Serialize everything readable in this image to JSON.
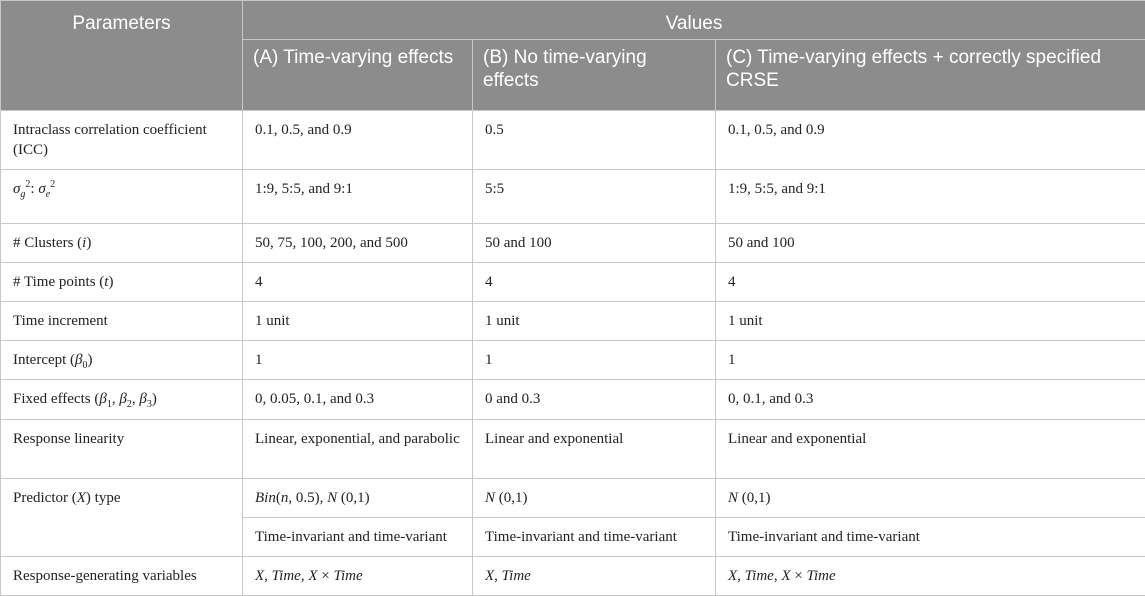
{
  "header": {
    "parameters": "Parameters",
    "values": "Values",
    "col_a": "(A) Time-varying effects",
    "col_b": "(B) No time-varying effects",
    "col_c": "(C) Time-varying effects + correctly specified CRSE"
  },
  "rows": [
    {
      "param": "Intraclass correlation coefficient (ICC)",
      "a": "0.1, 0.5, and 0.9",
      "b": "0.5",
      "c": "0.1, 0.5, and 0.9"
    },
    {
      "param_sigma_g": "σ",
      "param_sub_g": "g",
      "param_sup_g": "2",
      "param_colon": ": ",
      "param_sigma_e": "σ",
      "param_sub_e": "e",
      "param_sup_e": "2",
      "a": "1:9, 5:5, and 9:1",
      "b": "5:5",
      "c": "1:9, 5:5, and 9:1"
    },
    {
      "param_prefix": "# Clusters (",
      "param_var": "i",
      "param_suffix": ")",
      "a": "50, 75, 100, 200, and 500",
      "b": "50 and 100",
      "c": "50 and 100"
    },
    {
      "param_prefix": "# Time points (",
      "param_var": "t",
      "param_suffix": ")",
      "a": "4",
      "b": "4",
      "c": "4"
    },
    {
      "param": "Time increment",
      "a": "1 unit",
      "b": "1 unit",
      "c": "1 unit"
    },
    {
      "param_prefix": "Intercept (",
      "param_var": "β",
      "param_sub": "0",
      "param_suffix": ")",
      "a": "1",
      "b": "1",
      "c": "1"
    },
    {
      "param_prefix": "Fixed effects (",
      "b1": "β",
      "s1": "1",
      "b2": "β",
      "s2": "2",
      "b3": "β",
      "s3": "3",
      "sep": ", ",
      "param_suffix": ")",
      "a": "0, 0.05, 0.1, and 0.3",
      "b": "0 and 0.3",
      "c": "0, 0.1, and 0.3"
    },
    {
      "param": "Response linearity",
      "a": "Linear, exponential, and parabolic",
      "b": "Linear and exponential",
      "c": "Linear and exponential"
    },
    {
      "param_prefix": "Predictor (",
      "param_var": "X",
      "param_suffix": ") type",
      "a_bin": "Bin",
      "a_bin_args_open": "(",
      "a_n": "n",
      "a_bin_rest": ", 0.5), ",
      "a_N": "N",
      "a_N_rest": " (0,1)",
      "b_N": "N",
      "b_rest": " (0,1)",
      "c_N": "N",
      "c_rest": " (0,1)"
    },
    {
      "a": "Time-invariant and time-variant",
      "b": "Time-invariant and time-variant",
      "c": "Time-invariant and time-variant"
    },
    {
      "param": "Response-generating variables",
      "a_x": "X",
      "a_comma1": ", ",
      "a_time": "Time",
      "a_comma2": ", ",
      "a_x2": "X",
      "a_times": " × ",
      "a_time2": "Time",
      "b_x": "X",
      "b_comma": ", ",
      "b_time": "Time",
      "c_x": "X",
      "c_comma1": ", ",
      "c_time": "Time",
      "c_comma2": ", ",
      "c_x2": "X",
      "c_times": " × ",
      "c_time2": "Time"
    }
  ]
}
